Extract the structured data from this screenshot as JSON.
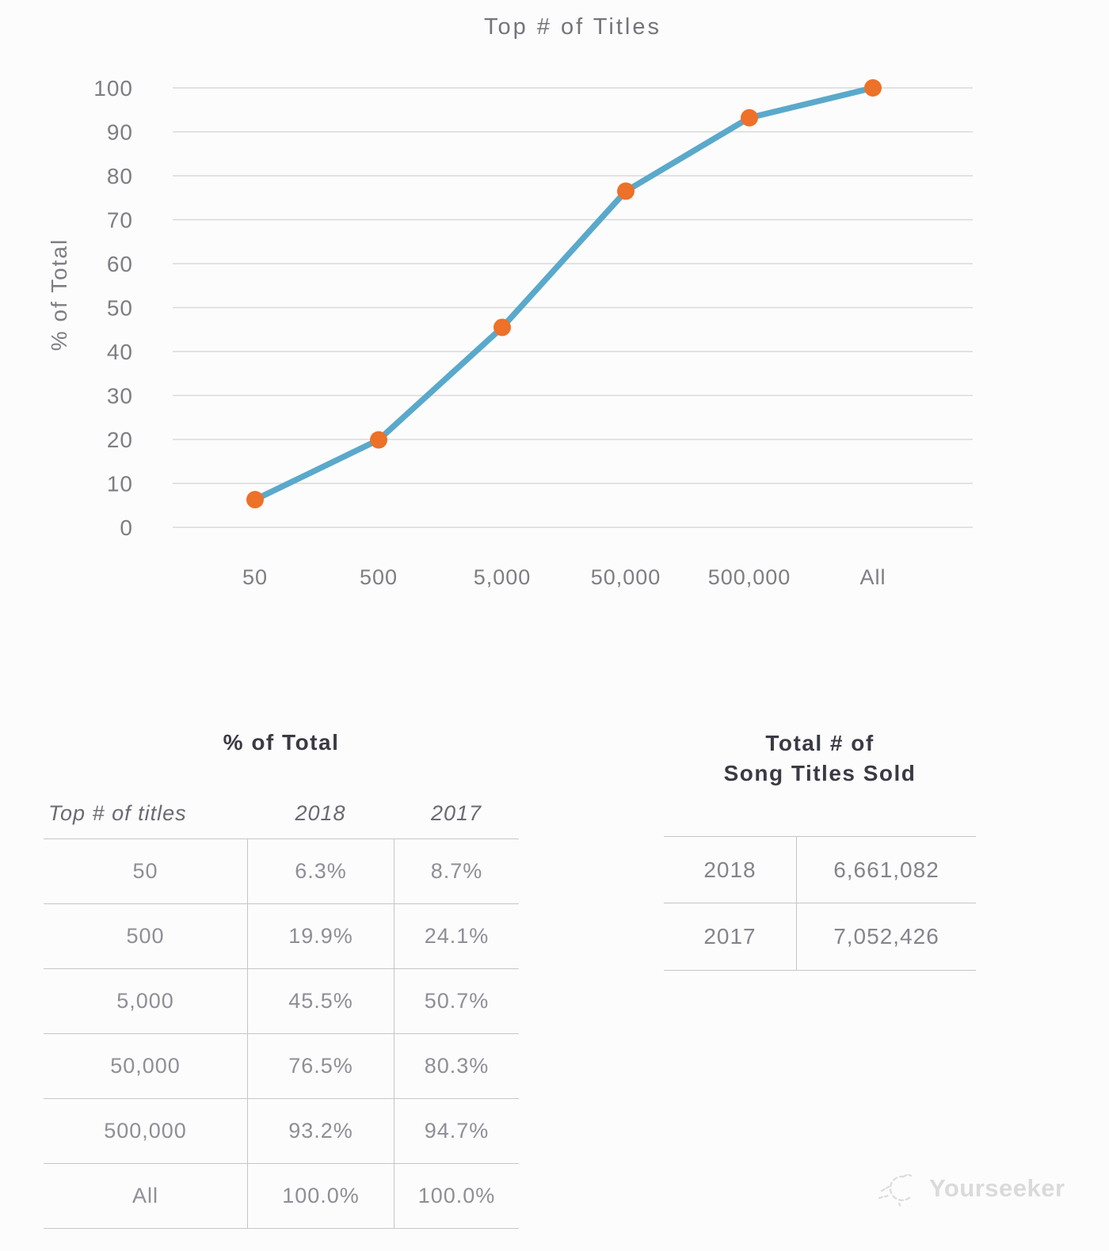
{
  "chart_data": {
    "type": "line",
    "title": "Top # of Titles",
    "ylabel": "% of Total",
    "categories": [
      "50",
      "500",
      "5,000",
      "50,000",
      "500,000",
      "All"
    ],
    "series": [
      {
        "name": "2018",
        "values": [
          6.3,
          19.9,
          45.5,
          76.5,
          93.2,
          100.0
        ]
      }
    ],
    "ylim": [
      0,
      100
    ],
    "ytick_interval": 10,
    "grid": "horizontal",
    "legend": "none",
    "line_color": "#5aa9cb",
    "marker_color": "#ed7128",
    "gridline_color": "#d9d9d9"
  },
  "tables": {
    "percent_of_total": {
      "title": "% of Total",
      "columns": [
        "Top # of titles",
        "2018",
        "2017"
      ],
      "rows": [
        [
          "50",
          "6.3%",
          "8.7%"
        ],
        [
          "500",
          "19.9%",
          "24.1%"
        ],
        [
          "5,000",
          "45.5%",
          "50.7%"
        ],
        [
          "50,000",
          "76.5%",
          "80.3%"
        ],
        [
          "500,000",
          "93.2%",
          "94.7%"
        ],
        [
          "All",
          "100.0%",
          "100.0%"
        ]
      ]
    },
    "titles_sold": {
      "title_line1": "Total # of",
      "title_line2": "Song Titles Sold",
      "rows": [
        [
          "2018",
          "6,661,082"
        ],
        [
          "2017",
          "7,052,426"
        ]
      ]
    }
  },
  "watermark": {
    "text": "Yourseeker"
  }
}
